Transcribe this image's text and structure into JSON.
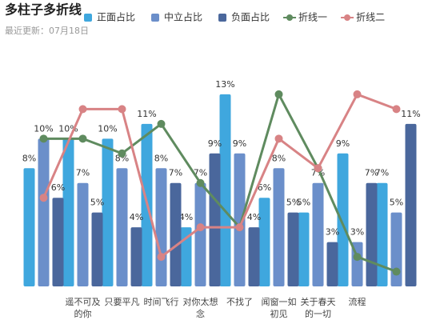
{
  "chart_data": {
    "type": "combo",
    "title": "多柱子多折线",
    "subtitle": "最近更新：07月18日",
    "categories": [
      null,
      "遥不可及的你",
      "只要平凡",
      "时间飞行",
      "对你太想念",
      "不找了",
      "闻窗一如初见",
      "关于春天的一切",
      "流程",
      null
    ],
    "ylim": [
      0,
      15
    ],
    "series": [
      {
        "name": "正面占比",
        "type": "bar",
        "color": "#3fa7de",
        "values": [
          8,
          10,
          10,
          11,
          4,
          13,
          6,
          5,
          9,
          7
        ],
        "value_labels": [
          "8%",
          "10%",
          "10%",
          "11%",
          "4%",
          "13%",
          "6%",
          "5%",
          "9%",
          "7%"
        ]
      },
      {
        "name": "中立占比",
        "type": "bar",
        "color": "#6b8fca",
        "values": [
          10,
          7,
          8,
          8,
          7,
          9,
          8,
          7,
          3,
          5
        ],
        "value_labels": [
          "10%",
          "7%",
          "8%",
          "8%",
          "7%",
          "9%",
          "8%",
          "7%",
          "3%",
          "5%"
        ]
      },
      {
        "name": "负面占比",
        "type": "bar",
        "color": "#4a679c",
        "values": [
          6,
          5,
          4,
          7,
          9,
          4,
          5,
          3,
          7,
          11
        ],
        "value_labels": [
          "6%",
          "5%",
          "4%",
          "7%",
          "9%",
          "4%",
          "5%",
          "3%",
          "7%",
          "11%"
        ]
      },
      {
        "name": "折线一",
        "type": "line",
        "color": "#5f8b5f",
        "values": [
          10,
          10,
          9,
          11,
          7,
          4,
          13,
          8,
          2,
          1
        ]
      },
      {
        "name": "折线二",
        "type": "line",
        "color": "#d88385",
        "values": [
          6,
          12,
          12,
          2,
          4,
          4,
          10,
          8,
          13,
          12
        ]
      }
    ]
  }
}
